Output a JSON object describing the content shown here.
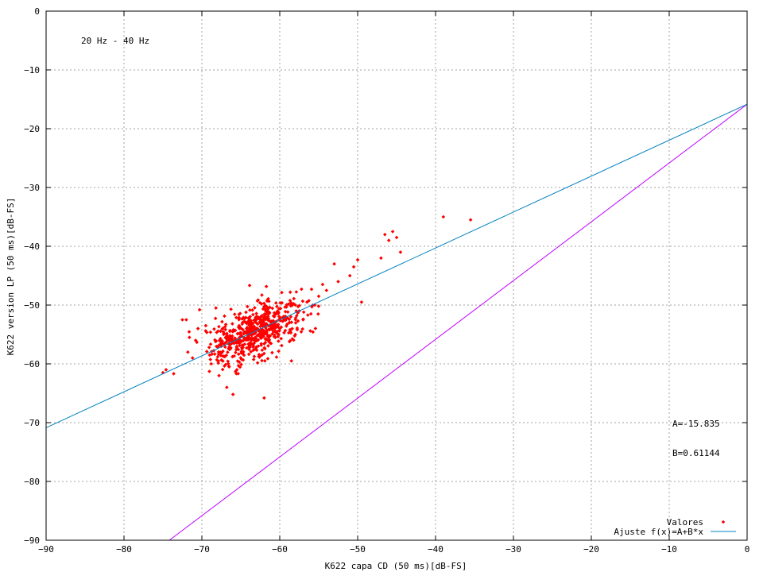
{
  "chart_data": {
    "type": "scatter",
    "title": "",
    "xlabel": "K622 capa CD (50 ms)[dB-FS]",
    "ylabel": "K622 version LP (50 ms)[dB-FS]",
    "xlim": [
      -90,
      0
    ],
    "ylim": [
      -90,
      0
    ],
    "x_ticks": [
      -90,
      -80,
      -70,
      -60,
      -50,
      -40,
      -30,
      -20,
      -10,
      0
    ],
    "y_ticks": [
      -90,
      -80,
      -70,
      -60,
      -50,
      -40,
      -30,
      -20,
      -10,
      0
    ],
    "grid": true,
    "legend_position": "bottom-right",
    "annotations": {
      "band": "20 Hz - 40 Hz",
      "param_a": "A=-15.835",
      "param_b": "B=0.61144"
    },
    "series": [
      {
        "name": "Valores",
        "kind": "scatter",
        "color": "#ff0000",
        "cluster": {
          "count": 620,
          "x_mean": -63.0,
          "y_mean": -54.5,
          "x_sd": 3.0,
          "y_sd": 2.6,
          "correlation": 0.55
        },
        "x": [
          -75.0,
          -74.6,
          -72.5,
          -72.0,
          -71.6,
          -71.2,
          -70.8,
          -70.3,
          -69.5,
          -68.8,
          -68.2,
          -67.8,
          -67.5,
          -67.2,
          -66.8,
          -66.0,
          -65.5,
          -62.0,
          -58.0,
          -57.5,
          -57.0,
          -56.5,
          -56.0,
          -55.5,
          -55.0,
          -54.5,
          -54.0,
          -53.0,
          -52.5,
          -51.0,
          -50.5,
          -50.0,
          -49.5,
          -47.0,
          -46.5,
          -46.0,
          -45.5,
          -45.0,
          -44.5,
          -39.0,
          -35.5,
          -71.8,
          -70.5,
          -69.0,
          -66.5,
          -58.5
        ],
        "y": [
          -61.5,
          -61.0,
          -52.5,
          -52.5,
          -55.5,
          -59.0,
          -56.0,
          -50.8,
          -53.5,
          -60.0,
          -50.5,
          -62.0,
          -57.0,
          -55.0,
          -64.0,
          -65.2,
          -61.0,
          -65.8,
          -55.0,
          -51.0,
          -52.5,
          -49.5,
          -51.5,
          -50.0,
          -48.5,
          -46.5,
          -47.5,
          -43.0,
          -46.0,
          -45.0,
          -43.5,
          -42.3,
          -49.5,
          -42.0,
          -38.0,
          -39.0,
          -37.5,
          -38.5,
          -41.0,
          -35.0,
          -35.5,
          -58.0,
          -54.0,
          -58.5,
          -60.5,
          -59.5
        ]
      },
      {
        "name": "Ajuste f(x)=A+B*x",
        "kind": "line",
        "color": "#0080c0",
        "x": [
          -90,
          0
        ],
        "y": [
          -70.865,
          -15.835
        ]
      },
      {
        "kind": "line",
        "color": "#c000ff",
        "x": [
          -74.165,
          0
        ],
        "y": [
          -90,
          -15.835
        ]
      }
    ]
  }
}
